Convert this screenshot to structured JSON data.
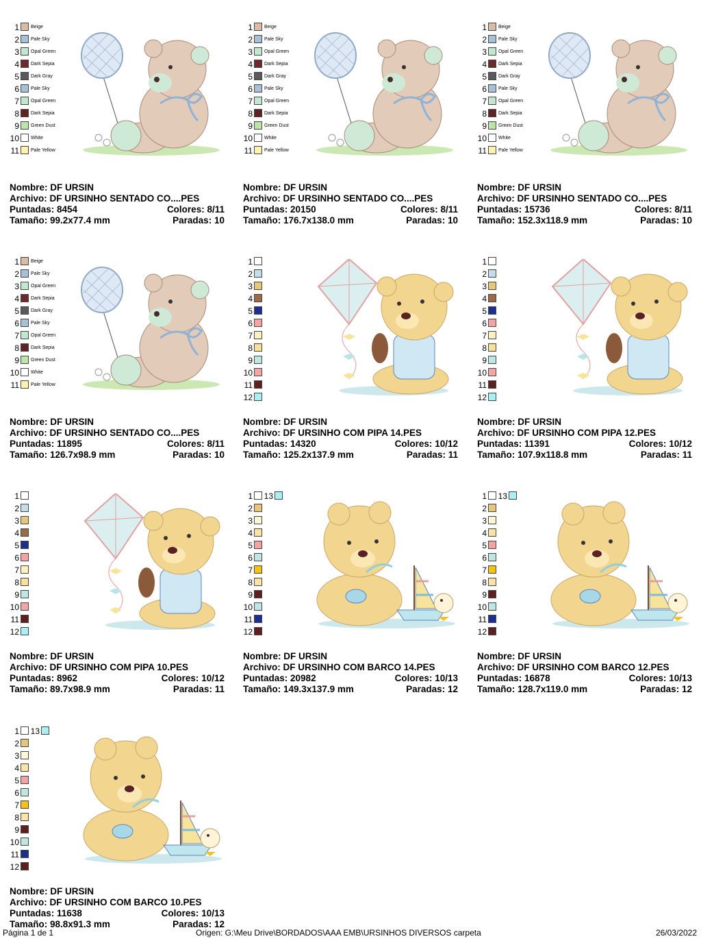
{
  "designs": [
    {
      "id": "d1",
      "art": "bear-balloon",
      "labels": {
        "nombre": "Nombre:",
        "archivo": "Archivo:",
        "puntadas": "Puntadas:",
        "colores": "Colores:",
        "tamano": "Tamaño:",
        "paradas": "Paradas:"
      },
      "nombre": "DF URSIN",
      "archivo": "DF URSINHO SENTADO CO....PES",
      "puntadas": "8454",
      "colores": "8/11",
      "tamano": "99.2x77.4 mm",
      "paradas": "10",
      "colors": [
        {
          "n": "1",
          "name": "Beige",
          "hex": "#d9bba6"
        },
        {
          "n": "2",
          "name": "Pale Sky",
          "hex": "#a9bfd6"
        },
        {
          "n": "3",
          "name": "Opal Green",
          "hex": "#c3e6cf"
        },
        {
          "n": "4",
          "name": "Dark Sepia",
          "hex": "#6e2a2a"
        },
        {
          "n": "5",
          "name": "Dark Gray",
          "hex": "#5a5a5a"
        },
        {
          "n": "6",
          "name": "Pale Sky",
          "hex": "#a9bfd6"
        },
        {
          "n": "7",
          "name": "Opal Green",
          "hex": "#c3e6cf"
        },
        {
          "n": "8",
          "name": "Dark Sepia",
          "hex": "#5e2424"
        },
        {
          "n": "9",
          "name": "Green Dust",
          "hex": "#bfe3a8"
        },
        {
          "n": "10",
          "name": "White",
          "hex": "#ffffff"
        },
        {
          "n": "11",
          "name": "Pale Yellow",
          "hex": "#fff2b0"
        }
      ]
    },
    {
      "id": "d2",
      "art": "bear-balloon",
      "labels": {
        "nombre": "Nombre:",
        "archivo": "Archivo:",
        "puntadas": "Puntadas:",
        "colores": "Colores:",
        "tamano": "Tamaño:",
        "paradas": "Paradas:"
      },
      "nombre": "DF URSIN",
      "archivo": "DF URSINHO SENTADO CO....PES",
      "puntadas": "20150",
      "colores": "8/11",
      "tamano": "176.7x138.0 mm",
      "paradas": "10",
      "colors": [
        {
          "n": "1",
          "name": "Beige",
          "hex": "#d9bba6"
        },
        {
          "n": "2",
          "name": "Pale Sky",
          "hex": "#a9bfd6"
        },
        {
          "n": "3",
          "name": "Opal Green",
          "hex": "#c3e6cf"
        },
        {
          "n": "4",
          "name": "Dark Sepia",
          "hex": "#6e2a2a"
        },
        {
          "n": "5",
          "name": "Dark Gray",
          "hex": "#5a5a5a"
        },
        {
          "n": "6",
          "name": "Pale Sky",
          "hex": "#a9bfd6"
        },
        {
          "n": "7",
          "name": "Opal Green",
          "hex": "#c3e6cf"
        },
        {
          "n": "8",
          "name": "Dark Sepia",
          "hex": "#5e2424"
        },
        {
          "n": "9",
          "name": "Green Dust",
          "hex": "#bfe3a8"
        },
        {
          "n": "10",
          "name": "White",
          "hex": "#ffffff"
        },
        {
          "n": "11",
          "name": "Pale Yellow",
          "hex": "#fff2b0"
        }
      ]
    },
    {
      "id": "d3",
      "art": "bear-balloon",
      "labels": {
        "nombre": "Nombre:",
        "archivo": "Archivo:",
        "puntadas": "Puntadas:",
        "colores": "Colores:",
        "tamano": "Tamaño:",
        "paradas": "Paradas:"
      },
      "nombre": "DF URSIN",
      "archivo": "DF URSINHO SENTADO CO....PES",
      "puntadas": "15736",
      "colores": "8/11",
      "tamano": "152.3x118.9 mm",
      "paradas": "10",
      "colors": [
        {
          "n": "1",
          "name": "Beige",
          "hex": "#d9bba6"
        },
        {
          "n": "2",
          "name": "Pale Sky",
          "hex": "#a9bfd6"
        },
        {
          "n": "3",
          "name": "Opal Green",
          "hex": "#c3e6cf"
        },
        {
          "n": "4",
          "name": "Dark Sepia",
          "hex": "#6e2a2a"
        },
        {
          "n": "5",
          "name": "Dark Gray",
          "hex": "#5a5a5a"
        },
        {
          "n": "6",
          "name": "Pale Sky",
          "hex": "#a9bfd6"
        },
        {
          "n": "7",
          "name": "Opal Green",
          "hex": "#c3e6cf"
        },
        {
          "n": "8",
          "name": "Dark Sepia",
          "hex": "#5e2424"
        },
        {
          "n": "9",
          "name": "Green Dust",
          "hex": "#bfe3a8"
        },
        {
          "n": "10",
          "name": "White",
          "hex": "#ffffff"
        },
        {
          "n": "11",
          "name": "Pale Yellow",
          "hex": "#fff2b0"
        }
      ]
    },
    {
      "id": "d4",
      "art": "bear-balloon",
      "labels": {
        "nombre": "Nombre:",
        "archivo": "Archivo:",
        "puntadas": "Puntadas:",
        "colores": "Colores:",
        "tamano": "Tamaño:",
        "paradas": "Paradas:"
      },
      "nombre": "DF URSIN",
      "archivo": "DF URSINHO SENTADO CO....PES",
      "puntadas": "11895",
      "colores": "8/11",
      "tamano": "126.7x98.9 mm",
      "paradas": "10",
      "colors": [
        {
          "n": "1",
          "name": "Beige",
          "hex": "#d9bba6"
        },
        {
          "n": "2",
          "name": "Pale Sky",
          "hex": "#a9bfd6"
        },
        {
          "n": "3",
          "name": "Opal Green",
          "hex": "#c3e6cf"
        },
        {
          "n": "4",
          "name": "Dark Sepia",
          "hex": "#6e2a2a"
        },
        {
          "n": "5",
          "name": "Dark Gray",
          "hex": "#5a5a5a"
        },
        {
          "n": "6",
          "name": "Pale Sky",
          "hex": "#a9bfd6"
        },
        {
          "n": "7",
          "name": "Opal Green",
          "hex": "#c3e6cf"
        },
        {
          "n": "8",
          "name": "Dark Sepia",
          "hex": "#5e2424"
        },
        {
          "n": "9",
          "name": "Green Dust",
          "hex": "#bfe3a8"
        },
        {
          "n": "10",
          "name": "White",
          "hex": "#ffffff"
        },
        {
          "n": "11",
          "name": "Pale Yellow",
          "hex": "#fff2b0"
        }
      ]
    },
    {
      "id": "d5",
      "art": "bear-kite",
      "labels": {
        "nombre": "Nombre:",
        "archivo": "Archivo:",
        "puntadas": "Puntadas:",
        "colores": "Colores:",
        "tamano": "Tamaño:",
        "paradas": "Paradas:"
      },
      "nombre": "DF URSIN",
      "archivo": "DF URSINHO COM PIPA 14.PES",
      "puntadas": "14320",
      "colores": "10/12",
      "tamano": "125.2x137.9 mm",
      "paradas": "11",
      "colors": [
        {
          "n": "1",
          "hex": "#ffffff"
        },
        {
          "n": "2",
          "hex": "#c6dcea"
        },
        {
          "n": "3",
          "hex": "#e5c67a"
        },
        {
          "n": "4",
          "hex": "#9b6a47"
        },
        {
          "n": "5",
          "hex": "#1c2f8f"
        },
        {
          "n": "6",
          "hex": "#f3a3a3"
        },
        {
          "n": "7",
          "hex": "#fff2c0"
        },
        {
          "n": "8",
          "hex": "#f9e09a"
        },
        {
          "n": "9",
          "hex": "#bfe7e0"
        },
        {
          "n": "10",
          "hex": "#f4a6a6"
        },
        {
          "n": "11",
          "hex": "#5e1f1f"
        },
        {
          "n": "12",
          "hex": "#a8f0f4"
        }
      ]
    },
    {
      "id": "d6",
      "art": "bear-kite",
      "labels": {
        "nombre": "Nombre:",
        "archivo": "Archivo:",
        "puntadas": "Puntadas:",
        "colores": "Colores:",
        "tamano": "Tamaño:",
        "paradas": "Paradas:"
      },
      "nombre": "DF URSIN",
      "archivo": "DF URSINHO COM PIPA 12.PES",
      "puntadas": "11391",
      "colores": "10/12",
      "tamano": "107.9x118.8 mm",
      "paradas": "11",
      "colors": [
        {
          "n": "1",
          "hex": "#ffffff"
        },
        {
          "n": "2",
          "hex": "#c6dcea"
        },
        {
          "n": "3",
          "hex": "#e5c67a"
        },
        {
          "n": "4",
          "hex": "#9b6a47"
        },
        {
          "n": "5",
          "hex": "#1c2f8f"
        },
        {
          "n": "6",
          "hex": "#f3a3a3"
        },
        {
          "n": "7",
          "hex": "#fff2c0"
        },
        {
          "n": "8",
          "hex": "#f9e09a"
        },
        {
          "n": "9",
          "hex": "#bfe7e0"
        },
        {
          "n": "10",
          "hex": "#f4a6a6"
        },
        {
          "n": "11",
          "hex": "#5e1f1f"
        },
        {
          "n": "12",
          "hex": "#a8f0f4"
        }
      ]
    },
    {
      "id": "d7",
      "art": "bear-kite",
      "labels": {
        "nombre": "Nombre:",
        "archivo": "Archivo:",
        "puntadas": "Puntadas:",
        "colores": "Colores:",
        "tamano": "Tamaño:",
        "paradas": "Paradas:"
      },
      "nombre": "DF URSIN",
      "archivo": "DF URSINHO COM PIPA 10.PES",
      "puntadas": "8962",
      "colores": "10/12",
      "tamano": "89.7x98.9 mm",
      "paradas": "11",
      "colors": [
        {
          "n": "1",
          "hex": "#ffffff"
        },
        {
          "n": "2",
          "hex": "#c6dcea"
        },
        {
          "n": "3",
          "hex": "#e5c67a"
        },
        {
          "n": "4",
          "hex": "#9b6a47"
        },
        {
          "n": "5",
          "hex": "#1c2f8f"
        },
        {
          "n": "6",
          "hex": "#f3a3a3"
        },
        {
          "n": "7",
          "hex": "#fff2c0"
        },
        {
          "n": "8",
          "hex": "#f9e09a"
        },
        {
          "n": "9",
          "hex": "#bfe7e0"
        },
        {
          "n": "10",
          "hex": "#f4a6a6"
        },
        {
          "n": "11",
          "hex": "#5e1f1f"
        },
        {
          "n": "12",
          "hex": "#a8f0f4"
        }
      ]
    },
    {
      "id": "d8",
      "art": "bear-boat",
      "labels": {
        "nombre": "Nombre:",
        "archivo": "Archivo:",
        "puntadas": "Puntadas:",
        "colores": "Colores:",
        "tamano": "Tamaño:",
        "paradas": "Paradas:"
      },
      "nombre": "DF URSIN",
      "archivo": "DF URSINHO COM BARCO 14.PES",
      "puntadas": "20982",
      "colores": "10/13",
      "tamano": "149.3x137.9 mm",
      "paradas": "12",
      "extra": {
        "n": "13",
        "hex": "#a8f0f4"
      },
      "colors": [
        {
          "n": "1",
          "hex": "#ffffff"
        },
        {
          "n": "2",
          "hex": "#e5c67a"
        },
        {
          "n": "3",
          "hex": "#fff6d6"
        },
        {
          "n": "4",
          "hex": "#fbe3a6"
        },
        {
          "n": "5",
          "hex": "#f3a3a3"
        },
        {
          "n": "6",
          "hex": "#bfe7e0"
        },
        {
          "n": "7",
          "hex": "#f6c21a"
        },
        {
          "n": "8",
          "hex": "#fbe3a6"
        },
        {
          "n": "9",
          "hex": "#5e1f1f"
        },
        {
          "n": "10",
          "hex": "#bfe7e0"
        },
        {
          "n": "11",
          "hex": "#1c2f8f"
        },
        {
          "n": "12",
          "hex": "#5e1f1f"
        }
      ]
    },
    {
      "id": "d9",
      "art": "bear-boat",
      "labels": {
        "nombre": "Nombre:",
        "archivo": "Archivo:",
        "puntadas": "Puntadas:",
        "colores": "Colores:",
        "tamano": "Tamaño:",
        "paradas": "Paradas:"
      },
      "nombre": "DF URSIN",
      "archivo": "DF URSINHO COM BARCO 12.PES",
      "puntadas": "16878",
      "colores": "10/13",
      "tamano": "128.7x119.0 mm",
      "paradas": "12",
      "extra": {
        "n": "13",
        "hex": "#a8f0f4"
      },
      "colors": [
        {
          "n": "1",
          "hex": "#ffffff"
        },
        {
          "n": "2",
          "hex": "#e5c67a"
        },
        {
          "n": "3",
          "hex": "#fff6d6"
        },
        {
          "n": "4",
          "hex": "#fbe3a6"
        },
        {
          "n": "5",
          "hex": "#f3a3a3"
        },
        {
          "n": "6",
          "hex": "#bfe7e0"
        },
        {
          "n": "7",
          "hex": "#f6c21a"
        },
        {
          "n": "8",
          "hex": "#fbe3a6"
        },
        {
          "n": "9",
          "hex": "#5e1f1f"
        },
        {
          "n": "10",
          "hex": "#bfe7e0"
        },
        {
          "n": "11",
          "hex": "#1c2f8f"
        },
        {
          "n": "12",
          "hex": "#5e1f1f"
        }
      ]
    },
    {
      "id": "d10",
      "art": "bear-boat",
      "labels": {
        "nombre": "Nombre:",
        "archivo": "Archivo:",
        "puntadas": "Puntadas:",
        "colores": "Colores:",
        "tamano": "Tamaño:",
        "paradas": "Paradas:"
      },
      "nombre": "DF URSIN",
      "archivo": "DF URSINHO COM BARCO 10.PES",
      "puntadas": "11638",
      "colores": "10/13",
      "tamano": "98.8x91.3 mm",
      "paradas": "12",
      "extra": {
        "n": "13",
        "hex": "#a8f0f4"
      },
      "colors": [
        {
          "n": "1",
          "hex": "#ffffff"
        },
        {
          "n": "2",
          "hex": "#e5c67a"
        },
        {
          "n": "3",
          "hex": "#fff6d6"
        },
        {
          "n": "4",
          "hex": "#fbe3a6"
        },
        {
          "n": "5",
          "hex": "#f3a3a3"
        },
        {
          "n": "6",
          "hex": "#bfe7e0"
        },
        {
          "n": "7",
          "hex": "#f6c21a"
        },
        {
          "n": "8",
          "hex": "#fbe3a6"
        },
        {
          "n": "9",
          "hex": "#5e1f1f"
        },
        {
          "n": "10",
          "hex": "#bfe7e0"
        },
        {
          "n": "11",
          "hex": "#1c2f8f"
        },
        {
          "n": "12",
          "hex": "#5e1f1f"
        }
      ]
    }
  ],
  "footer": {
    "page": "Página 1 de 1",
    "origin": "Origen: G:\\Meu Drive\\BORDADOS\\AAA EMB\\URSINHOS DIVERSOS carpeta",
    "date": "26/03/2022"
  }
}
